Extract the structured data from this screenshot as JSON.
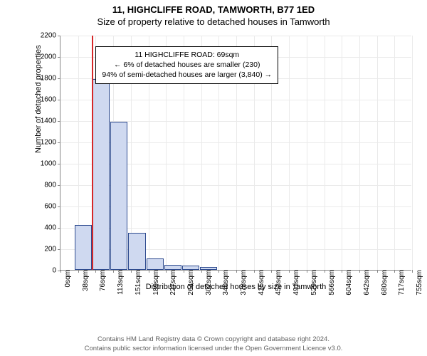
{
  "title_line1": "11, HIGHCLIFFE ROAD, TAMWORTH, B77 1ED",
  "title_line2": "Size of property relative to detached houses in Tamworth",
  "chart": {
    "type": "histogram",
    "ylabel": "Number of detached properties",
    "xlabel": "Distribution of detached houses by size in Tamworth",
    "yticks": [
      0,
      200,
      400,
      600,
      800,
      1000,
      1200,
      1400,
      1600,
      1800,
      2000,
      2200
    ],
    "ymax": 2200,
    "xticks": [
      "0sqm",
      "38sqm",
      "76sqm",
      "113sqm",
      "151sqm",
      "189sqm",
      "227sqm",
      "264sqm",
      "302sqm",
      "340sqm",
      "378sqm",
      "415sqm",
      "453sqm",
      "491sqm",
      "529sqm",
      "566sqm",
      "604sqm",
      "642sqm",
      "680sqm",
      "717sqm",
      "755sqm"
    ],
    "bars": [
      {
        "x_index": 0.8,
        "width_bins": 1.02,
        "value": 420
      },
      {
        "x_index": 1.82,
        "width_bins": 1.02,
        "value": 1790
      },
      {
        "x_index": 2.84,
        "width_bins": 1.02,
        "value": 1390
      },
      {
        "x_index": 3.86,
        "width_bins": 1.02,
        "value": 350
      },
      {
        "x_index": 4.88,
        "width_bins": 1.02,
        "value": 105
      },
      {
        "x_index": 5.9,
        "width_bins": 1.02,
        "value": 45
      },
      {
        "x_index": 6.92,
        "width_bins": 1.02,
        "value": 40
      },
      {
        "x_index": 7.94,
        "width_bins": 1.02,
        "value": 25
      }
    ],
    "bar_fill": "#cfd9f0",
    "bar_stroke": "#2e4b8f",
    "refline_x_bin": 1.82,
    "refline_color": "#d62728",
    "grid_color": "#eaeaea",
    "axis_color": "#888888",
    "info_box": {
      "line1": "11 HIGHCLIFFE ROAD: 69sqm",
      "line2": "← 6% of detached houses are smaller (230)",
      "line3": "94% of semi-detached houses are larger (3,840) →",
      "left_bin": 2.0,
      "top_val": 2100
    }
  },
  "footer_line1": "Contains HM Land Registry data © Crown copyright and database right 2024.",
  "footer_line2": "Contains public sector information licensed under the Open Government Licence v3.0."
}
